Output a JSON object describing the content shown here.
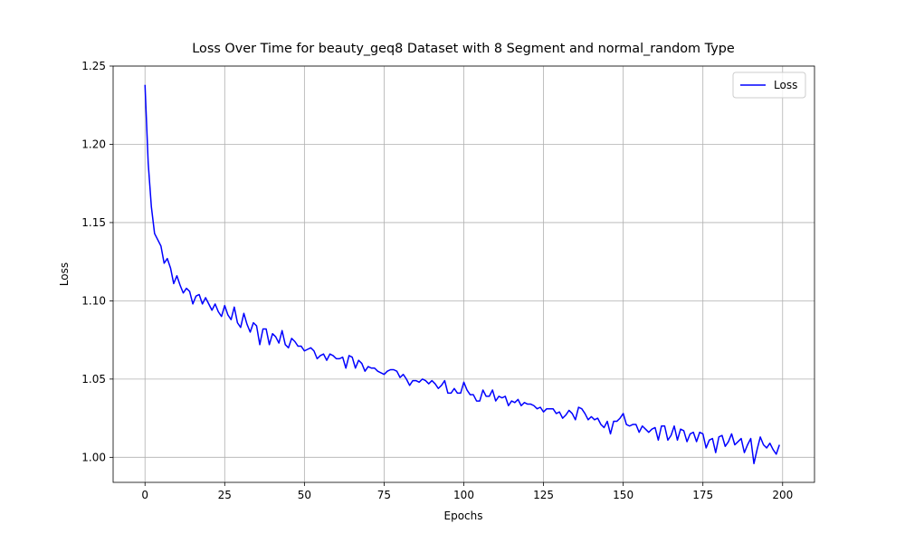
{
  "chart_data": {
    "type": "line",
    "title": "Loss Over Time for beauty_geq8 Dataset with 8 Segment and normal_random Type",
    "x_label": "Epochs",
    "y_label": "Loss",
    "x": [
      0,
      1,
      2,
      3,
      4,
      5,
      6,
      7,
      8,
      9,
      10,
      11,
      12,
      13,
      14,
      15,
      16,
      17,
      18,
      19,
      20,
      21,
      22,
      23,
      24,
      25,
      26,
      27,
      28,
      29,
      30,
      31,
      32,
      33,
      34,
      35,
      36,
      37,
      38,
      39,
      40,
      41,
      42,
      43,
      44,
      45,
      46,
      47,
      48,
      49,
      50,
      51,
      52,
      53,
      54,
      55,
      56,
      57,
      58,
      59,
      60,
      61,
      62,
      63,
      64,
      65,
      66,
      67,
      68,
      69,
      70,
      71,
      72,
      73,
      74,
      75,
      76,
      77,
      78,
      79,
      80,
      81,
      82,
      83,
      84,
      85,
      86,
      87,
      88,
      89,
      90,
      91,
      92,
      93,
      94,
      95,
      96,
      97,
      98,
      99,
      100,
      101,
      102,
      103,
      104,
      105,
      106,
      107,
      108,
      109,
      110,
      111,
      112,
      113,
      114,
      115,
      116,
      117,
      118,
      119,
      120,
      121,
      122,
      123,
      124,
      125,
      126,
      127,
      128,
      129,
      130,
      131,
      132,
      133,
      134,
      135,
      136,
      137,
      138,
      139,
      140,
      141,
      142,
      143,
      144,
      145,
      146,
      147,
      148,
      149,
      150,
      151,
      152,
      153,
      154,
      155,
      156,
      157,
      158,
      159,
      160,
      161,
      162,
      163,
      164,
      165,
      166,
      167,
      168,
      169,
      170,
      171,
      172,
      173,
      174,
      175,
      176,
      177,
      178,
      179,
      180,
      181,
      182,
      183,
      184,
      185,
      186,
      187,
      188,
      189,
      190,
      191,
      192,
      193,
      194,
      195,
      196,
      197,
      198,
      199
    ],
    "series": [
      {
        "name": "Loss",
        "color": "#0000ff",
        "values": [
          1.238,
          1.188,
          1.16,
          1.143,
          1.139,
          1.135,
          1.124,
          1.127,
          1.121,
          1.111,
          1.116,
          1.11,
          1.105,
          1.108,
          1.106,
          1.098,
          1.103,
          1.104,
          1.098,
          1.102,
          1.098,
          1.094,
          1.098,
          1.093,
          1.09,
          1.097,
          1.091,
          1.088,
          1.096,
          1.086,
          1.083,
          1.092,
          1.085,
          1.08,
          1.086,
          1.084,
          1.072,
          1.082,
          1.082,
          1.072,
          1.079,
          1.077,
          1.073,
          1.081,
          1.072,
          1.07,
          1.076,
          1.074,
          1.071,
          1.071,
          1.068,
          1.069,
          1.07,
          1.068,
          1.063,
          1.065,
          1.066,
          1.062,
          1.066,
          1.065,
          1.063,
          1.063,
          1.064,
          1.057,
          1.065,
          1.064,
          1.057,
          1.062,
          1.06,
          1.055,
          1.058,
          1.057,
          1.057,
          1.055,
          1.054,
          1.053,
          1.055,
          1.056,
          1.056,
          1.055,
          1.051,
          1.053,
          1.05,
          1.046,
          1.049,
          1.049,
          1.048,
          1.05,
          1.049,
          1.047,
          1.049,
          1.047,
          1.044,
          1.046,
          1.049,
          1.041,
          1.041,
          1.044,
          1.041,
          1.041,
          1.048,
          1.043,
          1.04,
          1.04,
          1.036,
          1.036,
          1.043,
          1.039,
          1.039,
          1.043,
          1.036,
          1.039,
          1.038,
          1.039,
          1.033,
          1.036,
          1.035,
          1.037,
          1.033,
          1.035,
          1.034,
          1.034,
          1.033,
          1.031,
          1.032,
          1.029,
          1.031,
          1.031,
          1.031,
          1.028,
          1.029,
          1.025,
          1.027,
          1.03,
          1.028,
          1.024,
          1.032,
          1.031,
          1.028,
          1.024,
          1.026,
          1.024,
          1.025,
          1.021,
          1.019,
          1.023,
          1.015,
          1.023,
          1.023,
          1.025,
          1.028,
          1.021,
          1.02,
          1.021,
          1.021,
          1.016,
          1.02,
          1.018,
          1.016,
          1.018,
          1.019,
          1.011,
          1.02,
          1.02,
          1.011,
          1.014,
          1.02,
          1.011,
          1.018,
          1.017,
          1.01,
          1.015,
          1.016,
          1.01,
          1.016,
          1.015,
          1.006,
          1.011,
          1.012,
          1.003,
          1.013,
          1.014,
          1.007,
          1.01,
          1.015,
          1.008,
          1.01,
          1.012,
          1.003,
          1.008,
          1.012,
          0.996,
          1.005,
          1.013,
          1.008,
          1.006,
          1.009,
          1.005,
          1.002,
          1.008
        ]
      }
    ],
    "xlim": [
      -10,
      210
    ],
    "ylim": [
      0.984,
      1.25
    ],
    "xticks": [
      0,
      25,
      50,
      75,
      100,
      125,
      150,
      175,
      200
    ],
    "yticks": [
      {
        "value": 1.0,
        "label": "1.00"
      },
      {
        "value": 1.05,
        "label": "1.05"
      },
      {
        "value": 1.1,
        "label": "1.10"
      },
      {
        "value": 1.15,
        "label": "1.15"
      },
      {
        "value": 1.2,
        "label": "1.20"
      },
      {
        "value": 1.25,
        "label": "1.25"
      }
    ],
    "grid": true,
    "legend": "upper right"
  }
}
